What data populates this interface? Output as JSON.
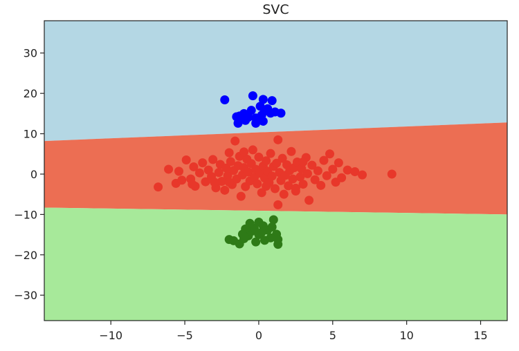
{
  "chart_data": {
    "type": "scatter",
    "title": "SVC",
    "xlabel": "",
    "ylabel": "",
    "xlim": [
      -14.5,
      16.8
    ],
    "ylim": [
      -36.3,
      38.0
    ],
    "xticks": [
      -10,
      -5,
      0,
      5,
      10,
      15
    ],
    "yticks": [
      30,
      20,
      10,
      0,
      -10,
      -20,
      -30
    ],
    "xtick_labels": [
      "−10",
      "−5",
      "0",
      "5",
      "10",
      "15"
    ],
    "ytick_labels": [
      "30",
      "20",
      "10",
      "0",
      "−10",
      "−20",
      "−30"
    ],
    "grid": false,
    "legend": "none",
    "regions": [
      {
        "class": "top",
        "color": "#b4d7e4"
      },
      {
        "class": "middle",
        "color": "#ec6e53"
      },
      {
        "class": "bottom",
        "color": "#a7e99a"
      }
    ],
    "boundaries": {
      "upper": [
        [
          -14.5,
          8.2
        ],
        [
          16.8,
          12.8
        ]
      ],
      "lower": [
        [
          -14.5,
          -8.3
        ],
        [
          16.8,
          -10.0
        ]
      ]
    },
    "series": [
      {
        "color": "#0000ff",
        "points": [
          [
            -2.3,
            18.4
          ],
          [
            -0.4,
            19.4
          ],
          [
            0.3,
            18.5
          ],
          [
            0.9,
            18.2
          ],
          [
            0.1,
            16.8
          ],
          [
            0.6,
            16.2
          ],
          [
            0.4,
            15.6
          ],
          [
            1.1,
            15.4
          ],
          [
            1.5,
            15.1
          ],
          [
            -0.5,
            15.8
          ],
          [
            -1.0,
            15.0
          ],
          [
            -1.3,
            14.4
          ],
          [
            -0.7,
            14.1
          ],
          [
            -0.2,
            13.9
          ],
          [
            0.2,
            14.6
          ],
          [
            0.8,
            15.1
          ],
          [
            -0.9,
            13.3
          ],
          [
            -1.5,
            14.2
          ],
          [
            -1.4,
            12.6
          ],
          [
            -0.2,
            12.6
          ],
          [
            0.3,
            13.1
          ]
        ]
      },
      {
        "color": "#e8372a",
        "points": [
          [
            -6.8,
            -3.2
          ],
          [
            -6.1,
            1.2
          ],
          [
            -5.6,
            -2.3
          ],
          [
            -5.4,
            0.7
          ],
          [
            -5.2,
            -1.5
          ],
          [
            -4.9,
            3.5
          ],
          [
            -4.6,
            -1.2
          ],
          [
            -4.4,
            1.8
          ],
          [
            -4.3,
            -3.0
          ],
          [
            -4.0,
            0.3
          ],
          [
            -3.8,
            2.8
          ],
          [
            -3.6,
            -1.9
          ],
          [
            -3.4,
            1.0
          ],
          [
            -3.2,
            -0.6
          ],
          [
            -3.1,
            3.6
          ],
          [
            -2.9,
            -3.4
          ],
          [
            -2.7,
            0.4
          ],
          [
            -2.6,
            2.4
          ],
          [
            -2.5,
            -1.8
          ],
          [
            -2.3,
            -4.0
          ],
          [
            -2.2,
            1.5
          ],
          [
            -2.1,
            -0.4
          ],
          [
            -2.0,
            5.3
          ],
          [
            -1.9,
            3.1
          ],
          [
            -1.8,
            -2.6
          ],
          [
            -1.7,
            0.9
          ],
          [
            -1.6,
            8.2
          ],
          [
            -1.5,
            -1.2
          ],
          [
            -1.4,
            2.1
          ],
          [
            -1.3,
            4.4
          ],
          [
            -1.2,
            -5.5
          ],
          [
            -1.1,
            -0.2
          ],
          [
            -1.0,
            1.6
          ],
          [
            -0.9,
            -3.1
          ],
          [
            -0.8,
            3.7
          ],
          [
            -0.7,
            0.5
          ],
          [
            -0.6,
            -1.7
          ],
          [
            -0.5,
            2.6
          ],
          [
            -0.4,
            6.0
          ],
          [
            -0.3,
            -0.8
          ],
          [
            -0.2,
            1.2
          ],
          [
            -0.1,
            -2.4
          ],
          [
            0.0,
            4.2
          ],
          [
            0.1,
            0.2
          ],
          [
            0.2,
            -4.6
          ],
          [
            0.3,
            2.0
          ],
          [
            0.4,
            -1.0
          ],
          [
            0.5,
            3.3
          ],
          [
            0.6,
            0.7
          ],
          [
            0.7,
            -2.1
          ],
          [
            0.8,
            5.1
          ],
          [
            0.9,
            -0.5
          ],
          [
            1.0,
            1.9
          ],
          [
            1.1,
            -3.6
          ],
          [
            1.2,
            2.7
          ],
          [
            1.3,
            -7.6
          ],
          [
            1.4,
            0.4
          ],
          [
            1.5,
            -1.6
          ],
          [
            1.6,
            3.9
          ],
          [
            1.3,
            8.5
          ],
          [
            1.8,
            -0.3
          ],
          [
            1.9,
            2.3
          ],
          [
            2.0,
            -2.9
          ],
          [
            2.1,
            0.9
          ],
          [
            2.2,
            5.6
          ],
          [
            2.3,
            -1.2
          ],
          [
            2.4,
            1.6
          ],
          [
            2.5,
            -4.2
          ],
          [
            2.6,
            3.0
          ],
          [
            2.8,
            -0.7
          ],
          [
            2.9,
            1.3
          ],
          [
            3.0,
            -2.5
          ],
          [
            3.2,
            4.1
          ],
          [
            3.3,
            0.1
          ],
          [
            3.4,
            -6.5
          ],
          [
            3.6,
            2.2
          ],
          [
            3.8,
            -1.4
          ],
          [
            4.0,
            0.8
          ],
          [
            4.2,
            -2.8
          ],
          [
            4.4,
            3.4
          ],
          [
            4.6,
            -0.4
          ],
          [
            4.8,
            5.0
          ],
          [
            5.0,
            1.2
          ],
          [
            5.2,
            -2.0
          ],
          [
            5.4,
            2.8
          ],
          [
            5.6,
            -0.9
          ],
          [
            6.0,
            1.0
          ],
          [
            6.5,
            0.6
          ],
          [
            7.0,
            -0.2
          ],
          [
            9.0,
            0.0
          ],
          [
            -3.0,
            -2.0
          ],
          [
            -2.0,
            -2.0
          ],
          [
            0.5,
            -3.0
          ],
          [
            1.7,
            -5.0
          ],
          [
            3.0,
            3.0
          ],
          [
            -4.5,
            -2.5
          ],
          [
            -1.0,
            5.5
          ],
          [
            2.5,
            -3.5
          ]
        ]
      },
      {
        "color": "#2e7a17",
        "points": [
          [
            -2.0,
            -16.2
          ],
          [
            -1.7,
            -16.5
          ],
          [
            -1.3,
            -17.3
          ],
          [
            -1.0,
            -16.0
          ],
          [
            -0.7,
            -15.3
          ],
          [
            -0.5,
            -14.2
          ],
          [
            -0.3,
            -13.4
          ],
          [
            -0.6,
            -12.2
          ],
          [
            0.0,
            -11.9
          ],
          [
            0.3,
            -12.8
          ],
          [
            0.6,
            -13.9
          ],
          [
            1.0,
            -11.3
          ],
          [
            1.2,
            -14.9
          ],
          [
            1.3,
            -16.2
          ],
          [
            1.3,
            -17.4
          ],
          [
            0.8,
            -15.8
          ],
          [
            0.4,
            -16.4
          ],
          [
            0.0,
            -15.0
          ],
          [
            -0.2,
            -16.8
          ],
          [
            -0.9,
            -13.6
          ],
          [
            -1.1,
            -14.9
          ],
          [
            0.2,
            -14.4
          ],
          [
            0.9,
            -13.1
          ]
        ]
      }
    ]
  }
}
